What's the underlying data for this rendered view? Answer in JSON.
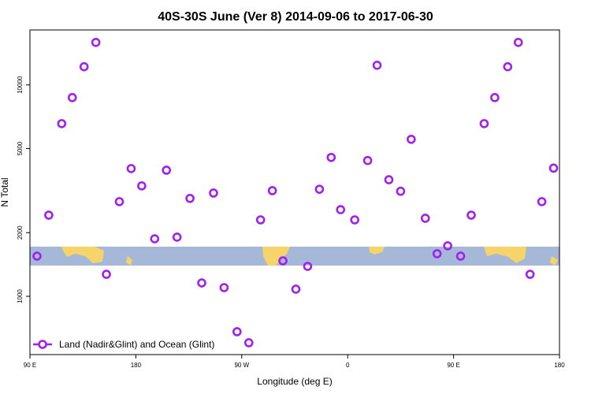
{
  "chart_data": {
    "type": "scatter",
    "title": "40S-30S June (Ver 8)   2014-09-06 to 2017-06-30",
    "xlabel": "Longitude (deg E)",
    "ylabel": "N Total",
    "xlim": [
      90,
      540
    ],
    "ylim": [
      530,
      18200
    ],
    "ylog": true,
    "grid": false,
    "legend": "bottom-left",
    "xticks": [
      {
        "value": 90,
        "label": "90 E"
      },
      180,
      {
        "value": 270,
        "label": "90 W"
      },
      {
        "value": 360,
        "label": "0"
      },
      {
        "value": 450,
        "label": "90 E"
      },
      {
        "value": 540,
        "label": "180"
      }
    ],
    "yticks": [
      1000,
      2000,
      5000,
      10000
    ],
    "series": [
      {
        "name": "Land (Nadir&Glint) and Ocean (Glint)",
        "color": "#a020f0",
        "x": [
          96,
          106,
          117,
          126,
          136,
          146,
          155,
          166,
          176,
          185,
          196,
          206,
          215,
          226,
          236,
          246,
          255,
          266,
          276,
          286,
          296,
          305,
          316,
          326,
          336,
          346,
          354,
          366,
          377,
          385,
          395,
          405,
          414,
          426,
          436,
          445,
          456,
          465,
          476,
          485,
          496,
          505,
          515,
          525,
          535
        ],
        "values": [
          1549,
          2421,
          6560,
          8710,
          12190,
          15890,
          1271,
          2805,
          4020,
          3330,
          1871,
          3950,
          1905,
          2905,
          1157,
          3080,
          1099,
          680,
          603,
          2300,
          3160,
          1472,
          1081,
          1386,
          3210,
          4540,
          2570,
          2300,
          4390,
          12390,
          3560,
          3140,
          5530,
          2340,
          1590,
          1733,
          1549,
          2421,
          6560,
          8710,
          12190,
          15890,
          1271,
          2805,
          4040
        ]
      }
    ]
  }
}
